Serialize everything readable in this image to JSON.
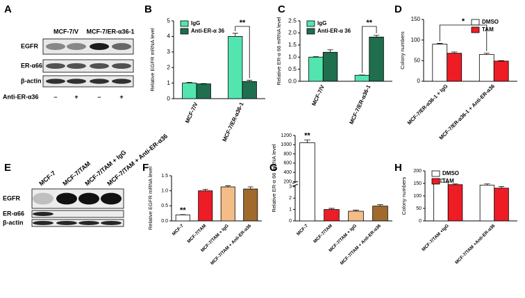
{
  "blot_a": {
    "panel": "A",
    "columns": [
      "MCF-7/V",
      "MCF-7/ER-α36-1"
    ],
    "rows": [
      "EGFR",
      "ER-α66",
      "β-actin"
    ],
    "treatment": "Anti-ER-α36",
    "treatment_signs": [
      "–",
      "+",
      "–",
      "+"
    ]
  },
  "blot_e": {
    "panel": "E",
    "columns": [
      "MCF-7",
      "MCF-7/TAM",
      "MCF-7/TAM + IgG",
      "MCF-7/TAM + Anti-ER-α36"
    ],
    "rows": [
      "EGFR",
      "ER-α66",
      "β-actin"
    ]
  },
  "chart_data": [
    {
      "type": "bar",
      "panel": "B",
      "ylabel": "Relative EGFR mRNA level",
      "categories": [
        "MCF-7/V",
        "MCF-7/ER-α36-1"
      ],
      "series": [
        {
          "name": "IgG",
          "color": "#52e5b0",
          "values": [
            1.0,
            4.0
          ],
          "errors": [
            0.05,
            0.2
          ]
        },
        {
          "name": "Anti-ER-α 36",
          "color": "#1f6e4e",
          "values": [
            0.95,
            1.1
          ],
          "errors": [
            0.02,
            0.08
          ]
        }
      ],
      "ylim": [
        0,
        5
      ],
      "yticks": [
        0,
        1,
        2,
        3,
        4,
        5
      ],
      "legend": "upper left",
      "annotations": [
        "**"
      ]
    },
    {
      "type": "bar",
      "panel": "C",
      "ylabel": "Relative ER-α 66 mRNA level",
      "categories": [
        "MCF-7/V",
        "MCF-7/ER-α36-1"
      ],
      "series": [
        {
          "name": "IgG",
          "color": "#52e5b0",
          "values": [
            1.0,
            0.25
          ],
          "errors": [
            0.02,
            0.01
          ]
        },
        {
          "name": "Anti-ER-α 36",
          "color": "#1f6e4e",
          "values": [
            1.2,
            1.83
          ],
          "errors": [
            0.1,
            0.07
          ]
        }
      ],
      "ylim": [
        0,
        2.5
      ],
      "yticks": [
        {
          "value": 0,
          "label": "0.0"
        },
        0.5,
        {
          "value": 1,
          "label": "1.0"
        },
        1.5,
        {
          "value": 2,
          "label": "2.0"
        },
        2.5
      ],
      "legend": "upper left",
      "annotations": [
        "**"
      ]
    },
    {
      "type": "bar",
      "panel": "D",
      "ylabel": "Colony numbers",
      "categories": [
        "MCF-7/ER-α36-1 + IgG",
        "MCF-7/ER-α36-1 + Anti-ER-α36"
      ],
      "series": [
        {
          "name": "DMSO",
          "color": "#ffffff",
          "values": [
            90,
            65
          ],
          "errors": [
            2,
            3
          ]
        },
        {
          "name": "TAM",
          "color": "#ee1c25",
          "values": [
            68,
            49
          ],
          "errors": [
            3,
            1
          ]
        }
      ],
      "ylim": [
        0,
        150
      ],
      "yticks": [
        0,
        50,
        100,
        150
      ],
      "legend": "upper right",
      "annotations": [
        "*"
      ]
    },
    {
      "type": "bar",
      "panel": "F",
      "ylabel": "Relative EGFR mRNA level",
      "categories": [
        "MCF-7",
        "MCF-7/TAM",
        "MCF-7/TAM + IgG",
        "MCF-7/TAM + Anti-ER-α36"
      ],
      "values": [
        0.2,
        1.0,
        1.13,
        1.06
      ],
      "errors": [
        0.01,
        0.05,
        0.04,
        0.07
      ],
      "colors": [
        "#ffffff",
        "#ee1c25",
        "#f4bd87",
        "#a06a2c"
      ],
      "ylim": [
        0,
        1.5
      ],
      "yticks": [
        {
          "value": 0,
          "label": "0.0"
        },
        0.5,
        {
          "value": 1,
          "label": "1.0"
        },
        1.5
      ],
      "annotations": [
        "**"
      ]
    },
    {
      "type": "bar",
      "panel": "G",
      "ylabel": "Relative ER-α 66 mRNA level",
      "categories": [
        "MCF-7",
        "MCF-7/TAM",
        "MCF-7/TAM + IgG",
        "MCF-7/TAM + Anti-ER-α36"
      ],
      "values": [
        1040,
        1.0,
        0.85,
        1.3
      ],
      "errors": [
        60,
        0.1,
        0.1,
        0.12
      ],
      "colors": [
        "#ffffff",
        "#ee1c25",
        "#f4bd87",
        "#a06a2c"
      ],
      "ylim": [
        0,
        1200
      ],
      "ybreak": [
        3,
        200
      ],
      "yticks": [
        0,
        1,
        2,
        3,
        200,
        400,
        600,
        800,
        1000,
        1200
      ],
      "annotations": [
        "**"
      ]
    },
    {
      "type": "bar",
      "panel": "H",
      "ylabel": "Colony numbers",
      "categories": [
        "MCF-7/TAM +IgG",
        "MCF-7/TAM +Anti-ER-α36"
      ],
      "series": [
        {
          "name": "DMSO",
          "color": "#ffffff",
          "values": [
            155,
            143
          ],
          "errors": [
            12,
            5
          ]
        },
        {
          "name": "TAM",
          "color": "#ee1c25",
          "values": [
            145,
            131
          ],
          "errors": [
            3,
            6
          ]
        }
      ],
      "ylim": [
        0,
        200
      ],
      "yticks": [
        0,
        50,
        100,
        150,
        200
      ],
      "legend": "upper left"
    }
  ]
}
